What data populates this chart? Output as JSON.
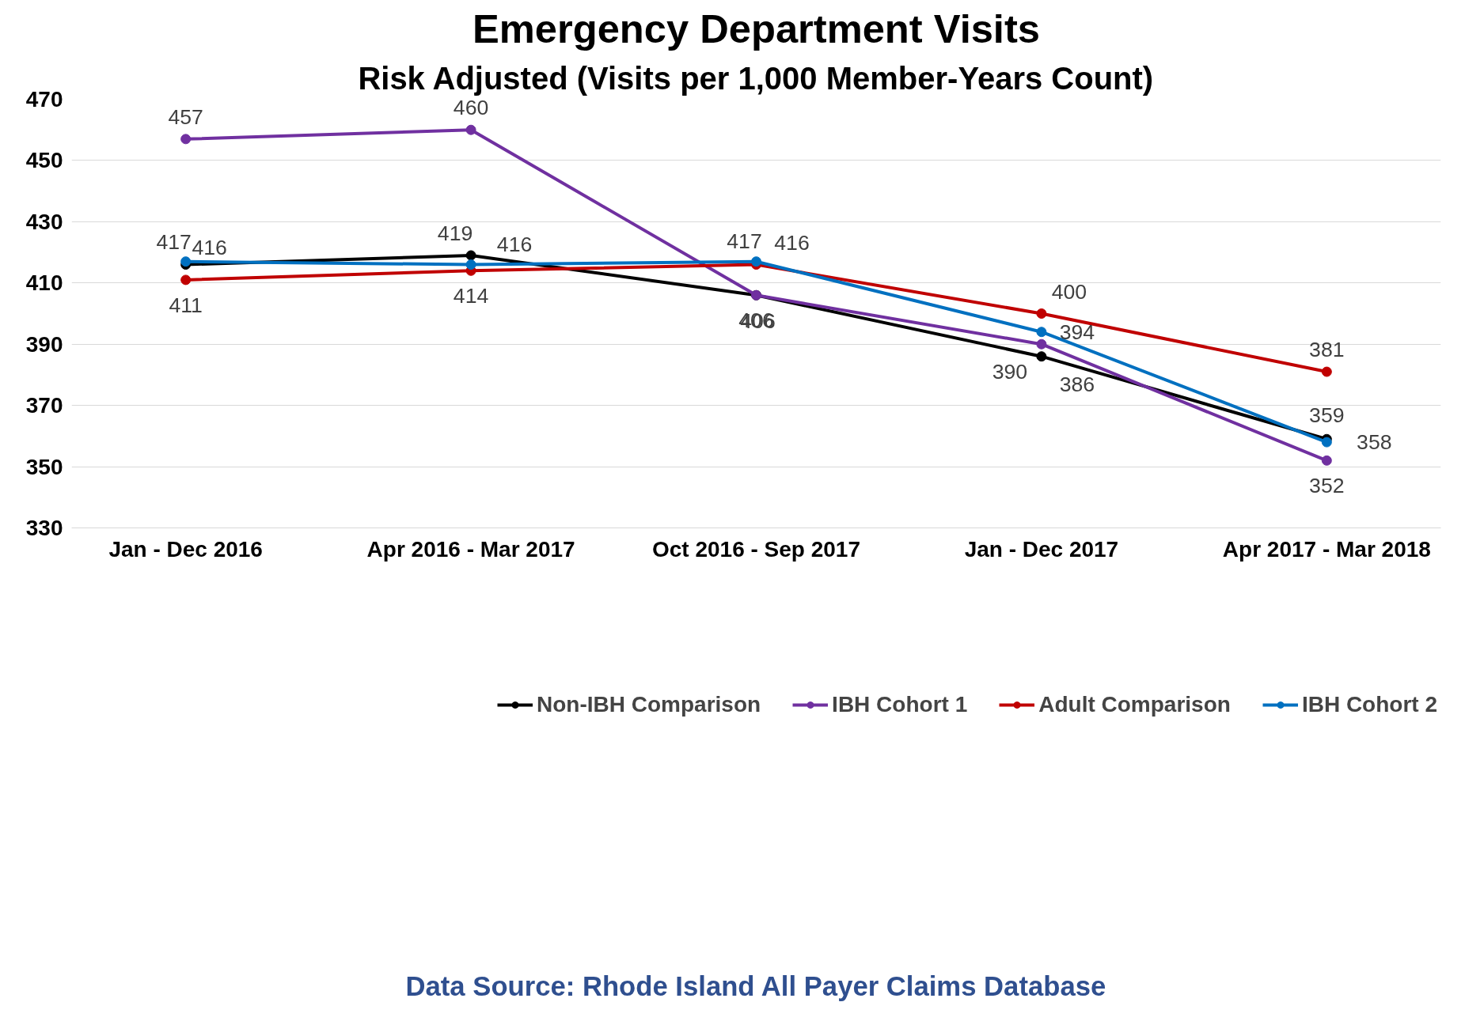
{
  "chart_data": {
    "type": "line",
    "title": "Emergency Department Visits",
    "subtitle": "Risk Adjusted (Visits per 1,000 Member-Years Count)",
    "categories": [
      "Jan - Dec 2016",
      "Apr 2016 - Mar 2017",
      "Oct 2016 - Sep 2017",
      "Jan - Dec 2017",
      "Apr 2017 - Mar 2018"
    ],
    "series": [
      {
        "name": "Non-IBH Comparison",
        "color": "#000000",
        "values": [
          416,
          419,
          406,
          386,
          359
        ]
      },
      {
        "name": "IBH Cohort 1",
        "color": "#7030a0",
        "values": [
          457,
          460,
          406,
          390,
          352
        ]
      },
      {
        "name": "Adult Comparison",
        "color": "#c00000",
        "values": [
          411,
          414,
          416,
          400,
          381
        ]
      },
      {
        "name": "IBH Cohort 2",
        "color": "#0070c0",
        "values": [
          417,
          416,
          417,
          394,
          358
        ]
      }
    ],
    "ylim": [
      330,
      470
    ],
    "yticks": [
      330,
      350,
      370,
      390,
      410,
      430,
      450,
      470
    ],
    "grid": "y",
    "legend": "bottom",
    "marker": "circle",
    "line_style": "solid",
    "data_labels": true,
    "annotations": [
      "Data Source: Rhode Island All Payer Claims Database"
    ]
  }
}
